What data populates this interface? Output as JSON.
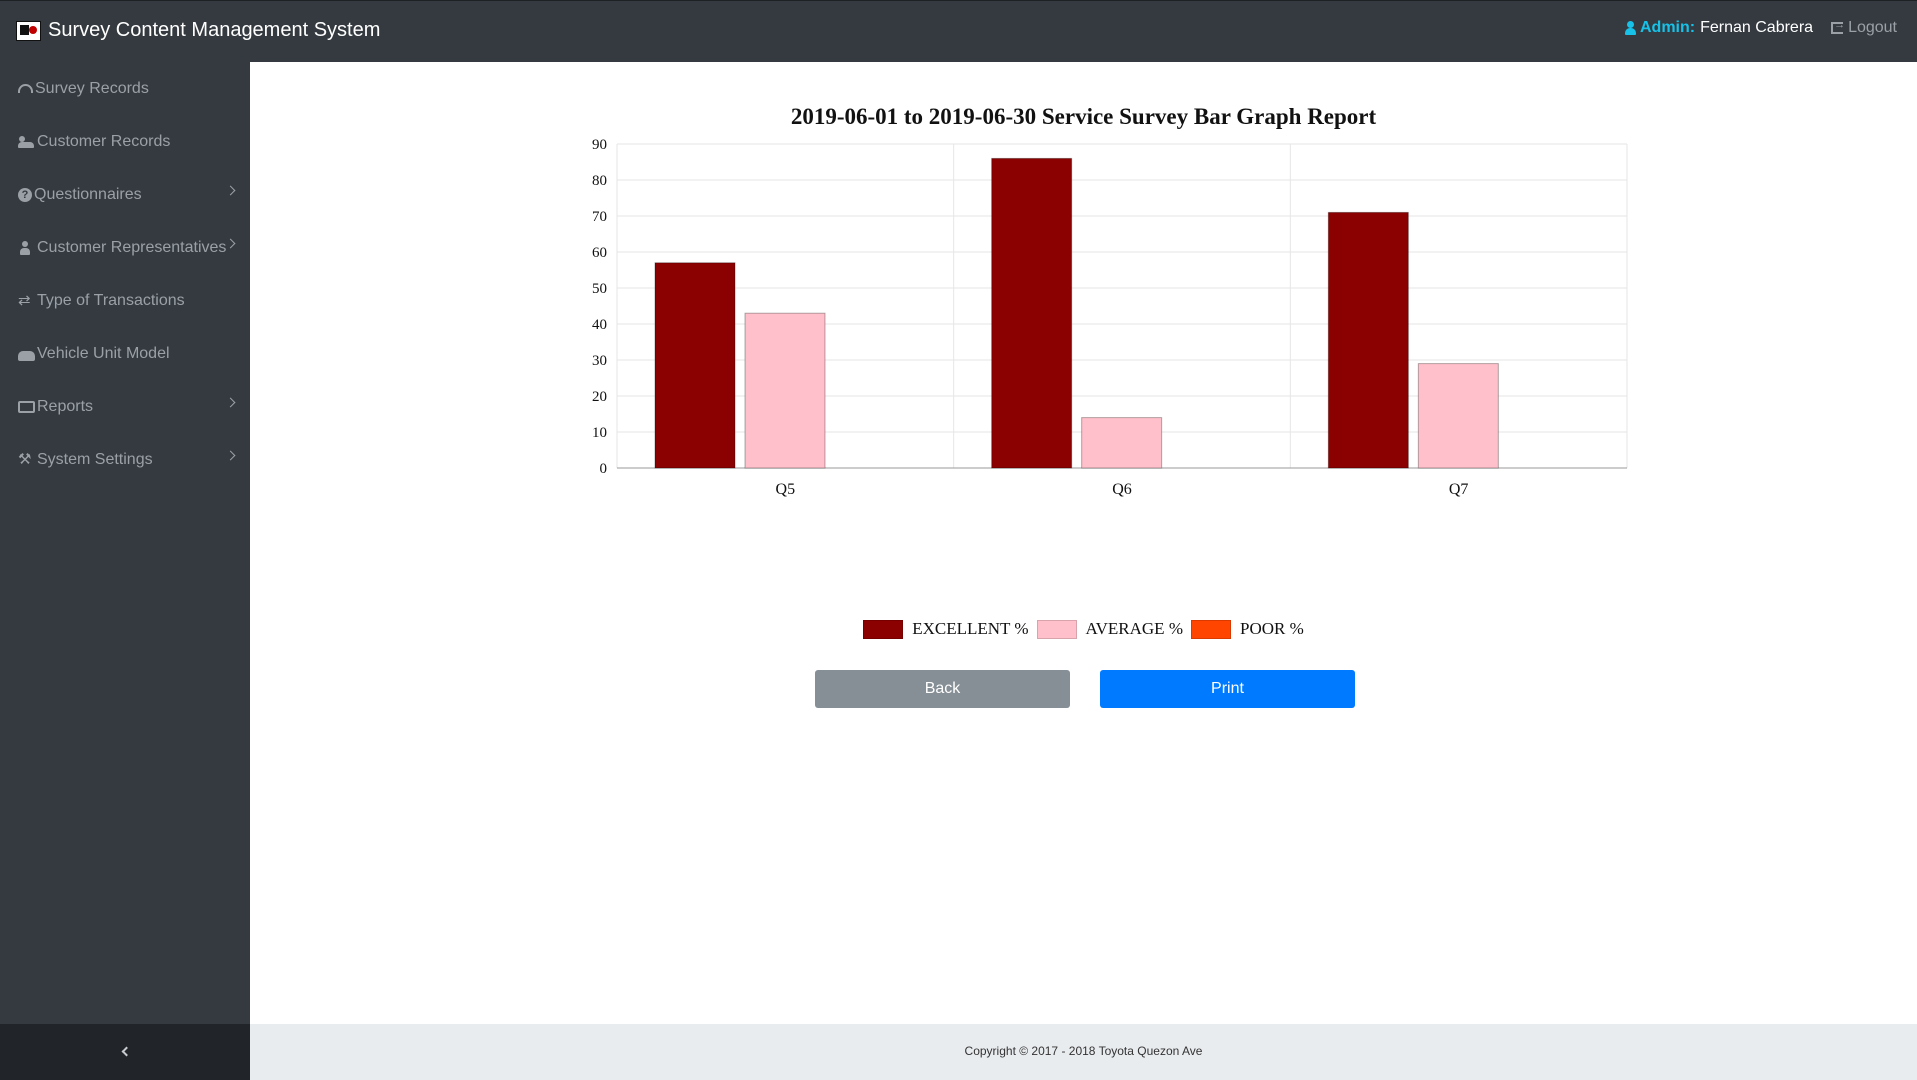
{
  "header": {
    "app_title": "Survey Content Management System",
    "admin_label": "Admin:",
    "admin_name": "Fernan Cabrera",
    "logout_label": "Logout"
  },
  "sidebar": {
    "items": [
      {
        "label": "Survey Records",
        "icon": "tachometer-icon",
        "has_submenu": false
      },
      {
        "label": "Customer Records",
        "icon": "users-icon",
        "has_submenu": false
      },
      {
        "label": "Questionnaires",
        "icon": "question-circle-icon",
        "has_submenu": true
      },
      {
        "label": "Customer Representatives",
        "icon": "user-icon",
        "has_submenu": true
      },
      {
        "label": "Type of Transactions",
        "icon": "exchange-icon",
        "has_submenu": false
      },
      {
        "label": "Vehicle Unit Model",
        "icon": "car-icon",
        "has_submenu": false
      },
      {
        "label": "Reports",
        "icon": "report-icon",
        "has_submenu": true
      },
      {
        "label": "System Settings",
        "icon": "wrench-icon",
        "has_submenu": true
      }
    ]
  },
  "chart_data": {
    "type": "bar",
    "title": "2019-06-01 to 2019-06-30 Service Survey Bar Graph Report",
    "categories": [
      "Q5",
      "Q6",
      "Q7"
    ],
    "series": [
      {
        "name": "EXCELLENT %",
        "color": "#8b0000",
        "values": [
          57,
          86,
          71
        ]
      },
      {
        "name": "AVERAGE %",
        "color": "#ffc0cb",
        "values": [
          43,
          14,
          29
        ]
      },
      {
        "name": "POOR %",
        "color": "#ff4500",
        "values": [
          0,
          0,
          0
        ]
      }
    ],
    "ylim": [
      0,
      90
    ],
    "yticks": [
      0,
      10,
      20,
      30,
      40,
      50,
      60,
      70,
      80,
      90
    ],
    "grid": true,
    "legend_position": "bottom"
  },
  "actions": {
    "back_label": "Back",
    "print_label": "Print"
  },
  "footer": {
    "copyright": "Copyright © 2017 - 2018 Toyota Quezon Ave"
  }
}
